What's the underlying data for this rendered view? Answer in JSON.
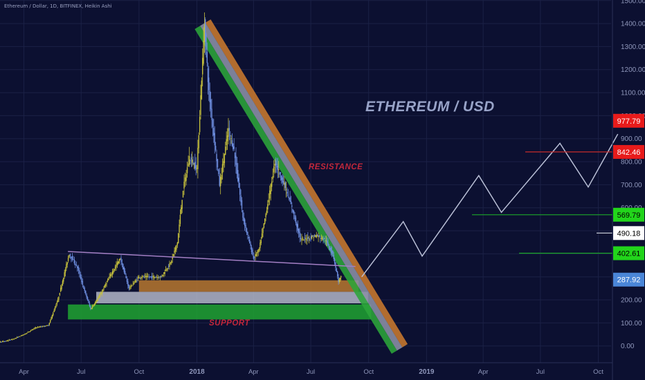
{
  "header": {
    "symbol_line": "Ethereum / Dollar, 1D, BITFINEX, Heikin Ashi"
  },
  "annotations": {
    "title": "ETHEREUM / USD",
    "resistance": "RESISTANCE",
    "support": "SUPPORT"
  },
  "colors": {
    "background": "#0c1031",
    "grid": "#1b2146",
    "candle_up": "#c7c13c",
    "candle_down": "#6e8ee0",
    "triangle_orange": "#c9792e",
    "triangle_grey": "#8c8fa6",
    "triangle_green": "#2ca53a",
    "support_orange": "#b8782f",
    "support_grey": "#b3b6c8",
    "support_green": "#20a331",
    "trendline": "#a37fc4",
    "projection": "#b9bfd6",
    "badge_red": "#e81b1b",
    "badge_green": "#22d51b",
    "badge_white": "#ffffff",
    "badge_blue": "#4a86d8"
  },
  "chart_data": {
    "type": "line",
    "title": "ETHEREUM / USD",
    "xlabel": "",
    "ylabel": "",
    "ylim": [
      -30,
      1500
    ],
    "grid": true,
    "x_ticks": [
      "Apr",
      "Jul",
      "Oct",
      "2018",
      "Apr",
      "Jul",
      "Oct",
      "2019",
      "Apr",
      "Jul",
      "Oct"
    ],
    "y_ticks": [
      0,
      100,
      200,
      300,
      400,
      500,
      600,
      700,
      800,
      900,
      1000,
      1100,
      1200,
      1300,
      1400,
      1500
    ],
    "price_series": {
      "name": "",
      "x": [
        "2017-01-01",
        "2017-02-01",
        "2017-03-01",
        "2017-03-15",
        "2017-04-01",
        "2017-04-20",
        "2017-05-10",
        "2017-05-25",
        "2017-06-12",
        "2017-06-25",
        "2017-07-05",
        "2017-07-16",
        "2017-07-31",
        "2017-08-15",
        "2017-09-01",
        "2017-09-15",
        "2017-10-01",
        "2017-10-20",
        "2017-11-05",
        "2017-11-20",
        "2017-12-01",
        "2017-12-10",
        "2017-12-20",
        "2018-01-01",
        "2018-01-13",
        "2018-01-20",
        "2018-02-06",
        "2018-02-20",
        "2018-03-01",
        "2018-03-15",
        "2018-04-01",
        "2018-04-10",
        "2018-04-25",
        "2018-05-05",
        "2018-05-20",
        "2018-06-01",
        "2018-06-15",
        "2018-06-28",
        "2018-07-10",
        "2018-07-24",
        "2018-08-05",
        "2018-08-14",
        "2018-08-18"
      ],
      "y": [
        10,
        12,
        20,
        30,
        50,
        80,
        90,
        200,
        400,
        340,
        250,
        160,
        220,
        300,
        380,
        250,
        300,
        300,
        300,
        360,
        450,
        680,
        820,
        770,
        1400,
        1100,
        700,
        940,
        850,
        560,
        380,
        420,
        640,
        800,
        700,
        600,
        460,
        470,
        480,
        460,
        400,
        280,
        300
      ]
    },
    "levels": [
      {
        "label": "977.79",
        "value": 977.79,
        "color": "#e81b1b"
      },
      {
        "label": "842.46",
        "value": 842.46,
        "color": "#e81b1b"
      },
      {
        "label": "569.79",
        "value": 569.79,
        "color": "#22d51b"
      },
      {
        "label": "490.18",
        "value": 490.18,
        "color": "#ffffff"
      },
      {
        "label": "402.61",
        "value": 402.61,
        "color": "#22d51b"
      },
      {
        "label": "287.92",
        "value": 287.92,
        "color": "#4a86d8"
      }
    ],
    "projection": {
      "x": [
        "2018-09-20",
        "2018-11-25",
        "2018-12-25",
        "2019-03-25",
        "2019-04-30",
        "2019-08-01",
        "2019-09-15",
        "2019-11-01"
      ],
      "y": [
        300,
        540,
        390,
        740,
        580,
        880,
        690,
        920
      ]
    },
    "trendline": {
      "x": [
        "2017-06-10",
        "2018-09-10"
      ],
      "y": [
        410,
        345
      ]
    },
    "resistance_band": {
      "start": {
        "x": "2018-01-06",
        "y": 1390
      },
      "end": {
        "x": "2018-11-15",
        "y": -20
      },
      "stripes": [
        "orange",
        "grey",
        "green"
      ]
    },
    "support_zones": [
      {
        "x_start": "2017-10-01",
        "x_end": "2018-09-15",
        "y_low": 235,
        "y_high": 285,
        "color": "orange"
      },
      {
        "x_start": "2017-07-25",
        "x_end": "2018-09-30",
        "y_low": 185,
        "y_high": 235,
        "color": "grey"
      },
      {
        "x_start": "2017-06-10",
        "x_end": "2018-10-05",
        "y_low": 115,
        "y_high": 180,
        "color": "green"
      }
    ]
  }
}
